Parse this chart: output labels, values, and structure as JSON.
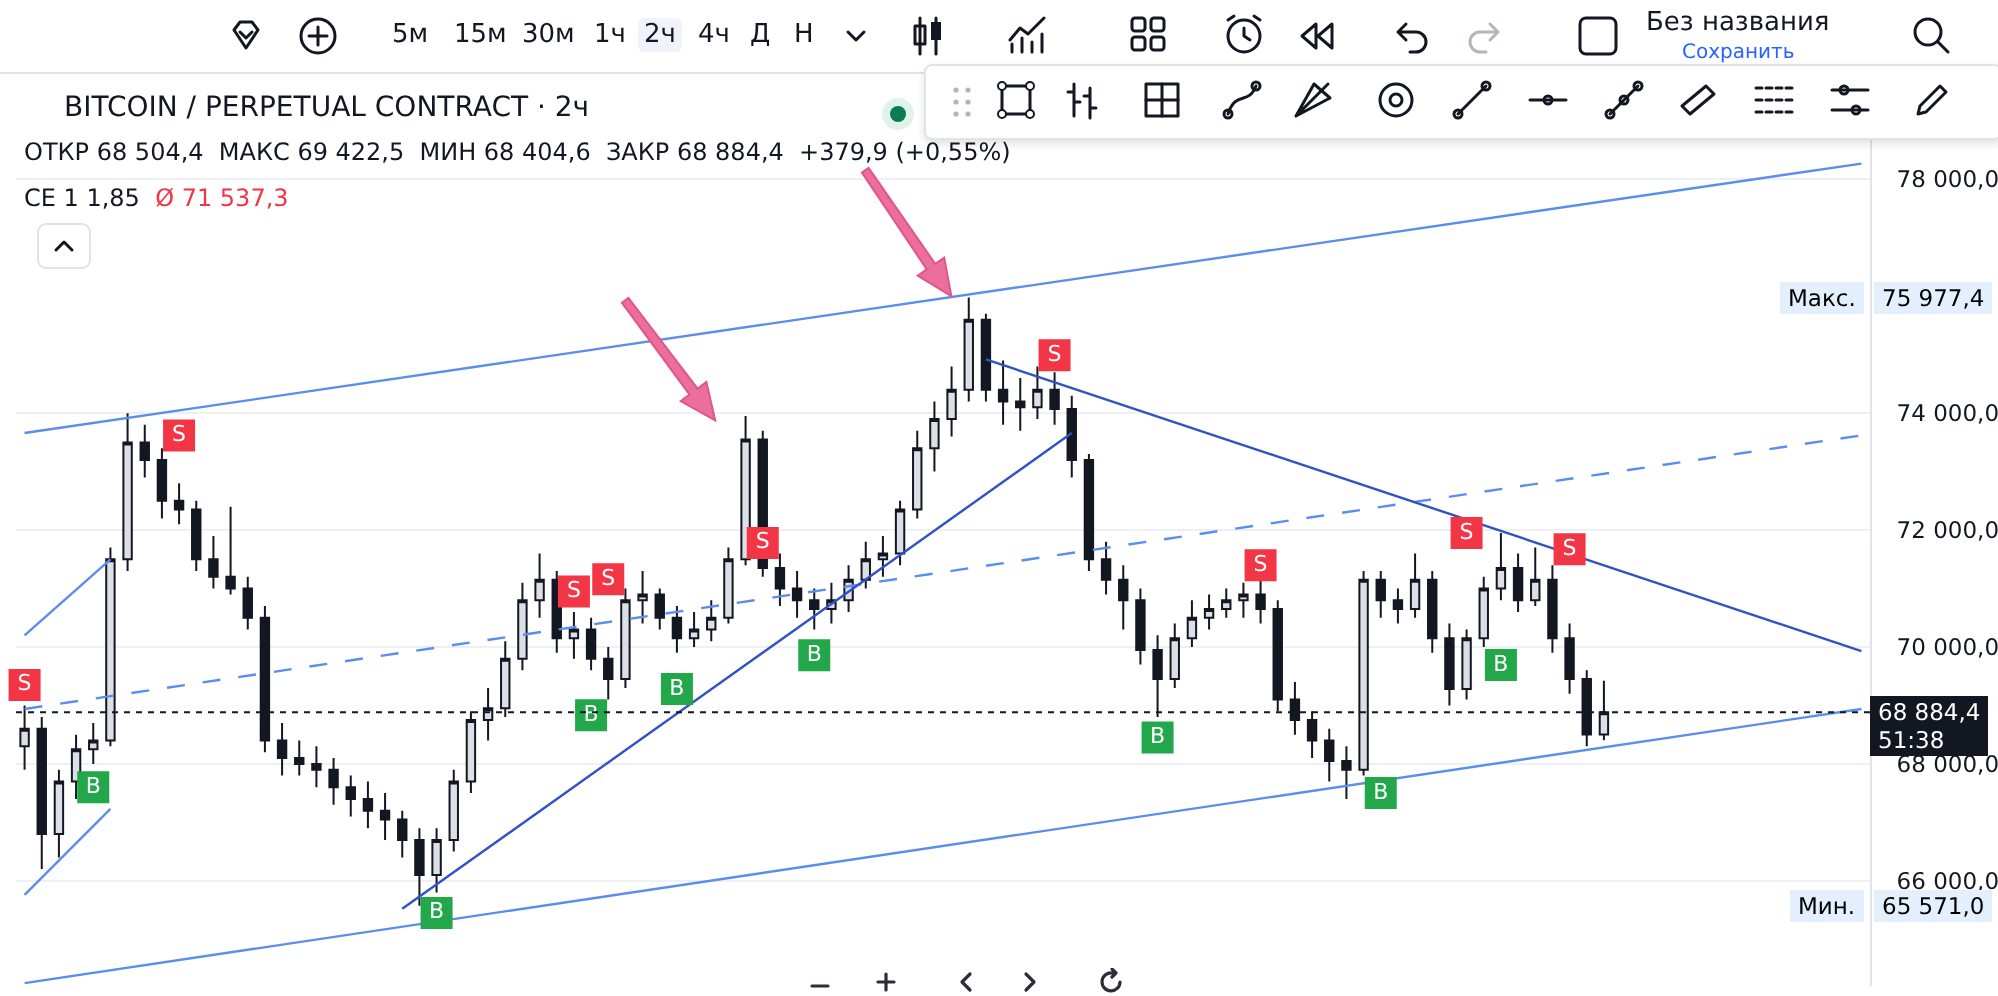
{
  "chart_data": {
    "type": "candlestick",
    "title": "BITCOIN / PERPETUAL CONTRACT · 2ч",
    "annotations": [
      "ОТКР 68 504,4  МАКС 69 422,5  МИН 68 404,6  ЗАКР 68 884,4  +379,9 (+0,55%)",
      "СЕ 1 1,85",
      "Ø 71 537,3",
      "5м",
      "15м",
      "30м",
      "1ч",
      "2ч",
      "4ч",
      "Д",
      "Н",
      "Без названия",
      "Сохранить",
      "Макс. 75 977,4",
      "Мин. 65 571,0"
    ],
    "categories": [
      null,
      null,
      null,
      null,
      null,
      null,
      null,
      null,
      null,
      null,
      null,
      null,
      null,
      null,
      null,
      null,
      null,
      null,
      null,
      null,
      null,
      null,
      null,
      null,
      null,
      null,
      null,
      null,
      null,
      null,
      null,
      null,
      null,
      null,
      null,
      null,
      null,
      null,
      null,
      null,
      null,
      null,
      null,
      null,
      null,
      null,
      null,
      null,
      null,
      null,
      null,
      null,
      null,
      null,
      null,
      null,
      null,
      null,
      null,
      null,
      null,
      null,
      null,
      null,
      null,
      null,
      null,
      null,
      null,
      null,
      null,
      null,
      null,
      null,
      null,
      null,
      null,
      null,
      null,
      null,
      null,
      null,
      null,
      null,
      null,
      null,
      null,
      null,
      null,
      null,
      null,
      null,
      null,
      null,
      null,
      null,
      null,
      null,
      null,
      null,
      null,
      null,
      null,
      null,
      null,
      null,
      null,
      null
    ],
    "ohlc": [
      [
        68300,
        69000,
        67900,
        68600
      ],
      [
        68600,
        68800,
        66200,
        66800
      ],
      [
        66800,
        67900,
        66400,
        67700
      ],
      [
        67700,
        68500,
        67400,
        68250
      ],
      [
        68250,
        68700,
        68000,
        68400
      ],
      [
        68400,
        71700,
        68300,
        71500
      ],
      [
        71500,
        74000,
        71300,
        73500
      ],
      [
        73500,
        73800,
        72900,
        73200
      ],
      [
        73200,
        73400,
        72200,
        72500
      ],
      [
        72500,
        72800,
        72100,
        72350
      ],
      [
        72350,
        72500,
        71300,
        71500
      ],
      [
        71500,
        71900,
        71000,
        71200
      ],
      [
        71200,
        72400,
        70900,
        71000
      ],
      [
        71000,
        71200,
        70300,
        70500
      ],
      [
        70500,
        70700,
        68200,
        68400
      ],
      [
        68400,
        68700,
        67800,
        68100
      ],
      [
        68100,
        68400,
        67800,
        68000
      ],
      [
        68000,
        68300,
        67600,
        67900
      ],
      [
        67900,
        68100,
        67300,
        67600
      ],
      [
        67600,
        67800,
        67100,
        67400
      ],
      [
        67400,
        67700,
        66900,
        67200
      ],
      [
        67200,
        67500,
        66700,
        67050
      ],
      [
        67050,
        67200,
        66400,
        66700
      ],
      [
        66700,
        66900,
        65571,
        66100
      ],
      [
        66100,
        66900,
        65800,
        66700
      ],
      [
        66700,
        67900,
        66500,
        67700
      ],
      [
        67700,
        68900,
        67500,
        68750
      ],
      [
        68750,
        69300,
        68400,
        68950
      ],
      [
        68950,
        70100,
        68800,
        69800
      ],
      [
        69800,
        71100,
        69600,
        70800
      ],
      [
        70800,
        71600,
        70500,
        71150
      ],
      [
        71150,
        71300,
        69900,
        70150
      ],
      [
        70150,
        70600,
        69800,
        70300
      ],
      [
        70300,
        70500,
        69600,
        69800
      ],
      [
        69800,
        70000,
        69100,
        69450
      ],
      [
        69450,
        71000,
        69300,
        70800
      ],
      [
        70800,
        71300,
        70400,
        70900
      ],
      [
        70900,
        71000,
        70300,
        70500
      ],
      [
        70500,
        70700,
        69900,
        70150
      ],
      [
        70150,
        70600,
        70000,
        70300
      ],
      [
        70300,
        70800,
        70100,
        70500
      ],
      [
        70500,
        71700,
        70400,
        71500
      ],
      [
        71500,
        73950,
        71400,
        73550
      ],
      [
        73550,
        73700,
        71200,
        71350
      ],
      [
        71350,
        71600,
        70700,
        71000
      ],
      [
        71000,
        71300,
        70500,
        70800
      ],
      [
        70800,
        71000,
        70300,
        70650
      ],
      [
        70650,
        71100,
        70400,
        70800
      ],
      [
        70800,
        71400,
        70600,
        71150
      ],
      [
        71150,
        71800,
        71000,
        71500
      ],
      [
        71500,
        71900,
        71200,
        71600
      ],
      [
        71600,
        72500,
        71400,
        72350
      ],
      [
        72350,
        73700,
        72200,
        73400
      ],
      [
        73400,
        74200,
        73000,
        73900
      ],
      [
        73900,
        74800,
        73600,
        74400
      ],
      [
        74400,
        75977.4,
        74200,
        75600
      ],
      [
        75600,
        75700,
        74200,
        74400
      ],
      [
        74400,
        74900,
        73800,
        74200
      ],
      [
        74200,
        74600,
        73700,
        74100
      ],
      [
        74100,
        74800,
        73900,
        74400
      ],
      [
        74400,
        74700,
        73800,
        74070
      ],
      [
        74070,
        74300,
        72900,
        73200
      ],
      [
        73200,
        73300,
        71300,
        71500
      ],
      [
        71500,
        71800,
        70900,
        71150
      ],
      [
        71150,
        71400,
        70300,
        70800
      ],
      [
        70800,
        71000,
        69700,
        69950
      ],
      [
        69950,
        70200,
        68800,
        69450
      ],
      [
        69450,
        70400,
        69300,
        70150
      ],
      [
        70150,
        70800,
        70000,
        70500
      ],
      [
        70500,
        70900,
        70300,
        70650
      ],
      [
        70650,
        71000,
        70500,
        70800
      ],
      [
        70800,
        71100,
        70500,
        70900
      ],
      [
        70900,
        71200,
        70400,
        70650
      ],
      [
        70650,
        70800,
        68900,
        69100
      ],
      [
        69100,
        69400,
        68500,
        68750
      ],
      [
        68750,
        68900,
        68100,
        68400
      ],
      [
        68400,
        68600,
        67700,
        68050
      ],
      [
        68050,
        68300,
        67400,
        67900
      ],
      [
        67900,
        71300,
        67800,
        71150
      ],
      [
        71150,
        71300,
        70500,
        70800
      ],
      [
        70800,
        71000,
        70400,
        70650
      ],
      [
        70650,
        71600,
        70500,
        71150
      ],
      [
        71150,
        71300,
        69900,
        70150
      ],
      [
        70150,
        70400,
        69000,
        69280
      ],
      [
        69280,
        70300,
        69100,
        70150
      ],
      [
        70150,
        71200,
        70000,
        71000
      ],
      [
        71000,
        71950,
        70800,
        71350
      ],
      [
        71350,
        71600,
        70600,
        70800
      ],
      [
        70800,
        71700,
        70700,
        71150
      ],
      [
        71150,
        71400,
        69900,
        70150
      ],
      [
        70150,
        70400,
        69200,
        69450
      ],
      [
        69450,
        69600,
        68300,
        68504.4
      ],
      [
        68504.4,
        69422.5,
        68404.6,
        68884.4
      ],
      null,
      null,
      null,
      null,
      null,
      null,
      null,
      null,
      null,
      null,
      null,
      null,
      null,
      null,
      null
    ],
    "series": [
      {
        "type": "line",
        "color": "#5b8def",
        "values": [
          73660,
          null,
          null,
          null,
          null,
          null,
          null,
          null,
          null,
          null,
          null,
          null,
          null,
          null,
          null,
          null,
          null,
          null,
          null,
          null,
          null,
          null,
          null,
          null,
          null,
          null,
          null,
          null,
          null,
          null,
          null,
          null,
          null,
          null,
          null,
          null,
          null,
          null,
          null,
          null,
          null,
          null,
          null,
          null,
          null,
          null,
          null,
          null,
          null,
          null,
          null,
          null,
          null,
          null,
          null,
          null,
          null,
          null,
          null,
          null,
          null,
          null,
          null,
          null,
          null,
          null,
          null,
          null,
          null,
          null,
          null,
          null,
          null,
          null,
          null,
          null,
          null,
          null,
          null,
          null,
          null,
          null,
          null,
          null,
          null,
          null,
          null,
          null,
          null,
          null,
          null,
          null,
          null,
          null,
          null,
          null,
          null,
          null,
          null,
          null,
          null,
          null,
          null,
          null,
          null,
          null,
          null,
          78270
        ]
      },
      {
        "type": "line",
        "color": "#5b8def",
        "values": [
          64250,
          null,
          null,
          null,
          null,
          null,
          null,
          null,
          null,
          null,
          null,
          null,
          null,
          null,
          null,
          null,
          null,
          null,
          null,
          null,
          null,
          null,
          null,
          null,
          null,
          null,
          null,
          null,
          null,
          null,
          null,
          null,
          null,
          null,
          null,
          null,
          null,
          null,
          null,
          null,
          null,
          null,
          null,
          null,
          null,
          null,
          null,
          null,
          null,
          null,
          null,
          null,
          null,
          null,
          null,
          null,
          null,
          null,
          null,
          null,
          null,
          null,
          null,
          null,
          null,
          null,
          null,
          null,
          null,
          null,
          null,
          null,
          null,
          null,
          null,
          null,
          null,
          null,
          null,
          null,
          null,
          null,
          null,
          null,
          null,
          null,
          null,
          null,
          null,
          null,
          null,
          null,
          null,
          null,
          null,
          null,
          null,
          null,
          null,
          null,
          null,
          null,
          null,
          null,
          null,
          null,
          null,
          68940
        ]
      },
      {
        "type": "line",
        "color": "#5b8def",
        "line_style": "dashed",
        "values": [
          68940,
          null,
          null,
          null,
          null,
          null,
          null,
          null,
          null,
          null,
          null,
          null,
          null,
          null,
          null,
          null,
          null,
          null,
          null,
          null,
          null,
          null,
          null,
          null,
          null,
          null,
          null,
          null,
          null,
          null,
          null,
          null,
          null,
          null,
          null,
          null,
          null,
          null,
          null,
          null,
          null,
          null,
          null,
          null,
          null,
          null,
          null,
          null,
          null,
          null,
          null,
          null,
          null,
          null,
          null,
          null,
          null,
          null,
          null,
          null,
          null,
          null,
          null,
          null,
          null,
          null,
          null,
          null,
          null,
          null,
          null,
          null,
          null,
          null,
          null,
          null,
          null,
          null,
          null,
          null,
          null,
          null,
          null,
          null,
          null,
          null,
          null,
          null,
          null,
          null,
          null,
          null,
          null,
          null,
          null,
          null,
          null,
          null,
          null,
          null,
          null,
          null,
          null,
          null,
          null,
          null,
          null,
          73620
        ]
      },
      {
        "type": "line",
        "color": "#5b8def",
        "values": [
          70200,
          null,
          null,
          null,
          null,
          71500,
          null,
          null,
          null,
          null,
          null,
          null,
          null,
          null,
          null,
          null,
          null,
          null,
          null,
          null,
          null,
          null,
          null,
          null,
          null,
          null,
          null,
          null,
          null,
          null,
          null,
          null,
          null,
          null,
          null,
          null,
          null,
          null,
          null,
          null,
          null,
          null,
          null,
          null,
          null,
          null,
          null,
          null,
          null,
          null,
          null,
          null,
          null,
          null,
          null,
          null,
          null,
          null,
          null,
          null,
          null,
          null,
          null,
          null,
          null,
          null,
          null,
          null,
          null,
          null,
          null,
          null,
          null,
          null,
          null,
          null,
          null,
          null,
          null,
          null,
          null,
          null,
          null,
          null,
          null,
          null,
          null,
          null,
          null,
          null,
          null,
          null,
          null,
          null,
          null,
          null,
          null,
          null,
          null,
          null,
          null,
          null,
          null,
          null,
          null,
          null,
          null,
          null
        ]
      },
      {
        "type": "line",
        "color": "#5b8def",
        "values": [
          65760,
          null,
          null,
          null,
          null,
          67230,
          null,
          null,
          null,
          null,
          null,
          null,
          null,
          null,
          null,
          null,
          null,
          null,
          null,
          null,
          null,
          null,
          null,
          null,
          null,
          null,
          null,
          null,
          null,
          null,
          null,
          null,
          null,
          null,
          null,
          null,
          null,
          null,
          null,
          null,
          null,
          null,
          null,
          null,
          null,
          null,
          null,
          null,
          null,
          null,
          null,
          null,
          null,
          null,
          null,
          null,
          null,
          null,
          null,
          null,
          null,
          null,
          null,
          null,
          null,
          null,
          null,
          null,
          null,
          null,
          null,
          null,
          null,
          null,
          null,
          null,
          null,
          null,
          null,
          null,
          null,
          null,
          null,
          null,
          null,
          null,
          null,
          null,
          null,
          null,
          null,
          null,
          null,
          null,
          null,
          null,
          null,
          null,
          null,
          null,
          null,
          null,
          null,
          null,
          null,
          null,
          null,
          null
        ]
      },
      {
        "type": "line",
        "color": "#2f52c4",
        "values": [
          null,
          null,
          null,
          null,
          null,
          null,
          null,
          null,
          null,
          null,
          null,
          null,
          null,
          null,
          null,
          null,
          null,
          null,
          null,
          null,
          null,
          null,
          65520,
          null,
          null,
          null,
          null,
          null,
          null,
          null,
          null,
          null,
          null,
          null,
          null,
          null,
          null,
          null,
          null,
          null,
          null,
          null,
          null,
          null,
          null,
          null,
          null,
          null,
          null,
          null,
          null,
          null,
          null,
          null,
          null,
          null,
          null,
          null,
          null,
          null,
          null,
          73660,
          null,
          null,
          null,
          null,
          null,
          null,
          null,
          null,
          null,
          null,
          null,
          null,
          null,
          null,
          null,
          null,
          null,
          null,
          null,
          null,
          null,
          null,
          null,
          null,
          null,
          null,
          null,
          null,
          null,
          null,
          null,
          null,
          null,
          null,
          null,
          null,
          null,
          null,
          null,
          null,
          null,
          null,
          null,
          null,
          null,
          null
        ]
      },
      {
        "type": "line",
        "color": "#2f52c4",
        "values": [
          null,
          null,
          null,
          null,
          null,
          null,
          null,
          null,
          null,
          null,
          null,
          null,
          null,
          null,
          null,
          null,
          null,
          null,
          null,
          null,
          null,
          null,
          null,
          null,
          null,
          null,
          null,
          null,
          null,
          null,
          null,
          null,
          null,
          null,
          null,
          null,
          null,
          null,
          null,
          null,
          null,
          null,
          null,
          null,
          null,
          null,
          null,
          null,
          null,
          null,
          null,
          null,
          null,
          null,
          null,
          null,
          74920,
          null,
          null,
          null,
          null,
          null,
          null,
          null,
          null,
          null,
          null,
          null,
          null,
          null,
          null,
          null,
          null,
          null,
          null,
          null,
          null,
          null,
          null,
          null,
          null,
          null,
          null,
          null,
          null,
          null,
          null,
          null,
          null,
          null,
          null,
          null,
          null,
          null,
          null,
          null,
          null,
          null,
          null,
          null,
          null,
          null,
          null,
          null,
          null,
          null,
          null,
          69930
        ]
      },
      {
        "type": "scatter",
        "color": "#f23645",
        "marker": "square",
        "values": [
          69350,
          null,
          null,
          null,
          null,
          null,
          null,
          null,
          null,
          73620,
          null,
          null,
          null,
          null,
          null,
          null,
          null,
          null,
          null,
          null,
          null,
          null,
          null,
          null,
          null,
          null,
          null,
          null,
          null,
          null,
          null,
          null,
          70950,
          null,
          71160,
          null,
          null,
          null,
          null,
          null,
          null,
          null,
          null,
          71780,
          null,
          null,
          null,
          null,
          null,
          null,
          null,
          null,
          null,
          null,
          null,
          null,
          null,
          null,
          null,
          null,
          74990,
          null,
          null,
          null,
          null,
          null,
          null,
          null,
          null,
          null,
          null,
          null,
          71400,
          null,
          null,
          null,
          null,
          null,
          null,
          null,
          null,
          null,
          null,
          null,
          71950,
          null,
          null,
          null,
          null,
          null,
          71670,
          null,
          null,
          null,
          null,
          null,
          null,
          null,
          null,
          null,
          null,
          null,
          null,
          null,
          null,
          null,
          null,
          null
        ],
        "value_labels": [
          "S",
          null,
          null,
          null,
          null,
          null,
          null,
          null,
          null,
          "S",
          null,
          null,
          null,
          null,
          null,
          null,
          null,
          null,
          null,
          null,
          null,
          null,
          null,
          null,
          null,
          null,
          null,
          null,
          null,
          null,
          null,
          null,
          "S",
          null,
          "S",
          null,
          null,
          null,
          null,
          null,
          null,
          null,
          null,
          "S",
          null,
          null,
          null,
          null,
          null,
          null,
          null,
          null,
          null,
          null,
          null,
          null,
          null,
          null,
          null,
          null,
          "S",
          null,
          null,
          null,
          null,
          null,
          null,
          null,
          null,
          null,
          null,
          null,
          "S",
          null,
          null,
          null,
          null,
          null,
          null,
          null,
          null,
          null,
          null,
          null,
          "S",
          null,
          null,
          null,
          null,
          null,
          "S",
          null,
          null,
          null,
          null,
          null,
          null,
          null,
          null,
          null,
          null,
          null,
          null,
          null,
          null,
          null,
          null,
          null
        ]
      },
      {
        "type": "scatter",
        "color": "#22a84a",
        "marker": "square",
        "values": [
          null,
          null,
          null,
          null,
          67600,
          null,
          null,
          null,
          null,
          null,
          null,
          null,
          null,
          null,
          null,
          null,
          null,
          null,
          null,
          null,
          null,
          null,
          null,
          null,
          65450,
          null,
          null,
          null,
          null,
          null,
          null,
          null,
          null,
          68830,
          null,
          null,
          null,
          null,
          69280,
          null,
          null,
          null,
          null,
          null,
          null,
          null,
          69860,
          null,
          null,
          null,
          null,
          null,
          null,
          null,
          null,
          null,
          null,
          null,
          null,
          null,
          null,
          null,
          null,
          null,
          null,
          null,
          68450,
          null,
          null,
          null,
          null,
          null,
          null,
          null,
          null,
          null,
          null,
          null,
          null,
          67500,
          null,
          null,
          null,
          null,
          null,
          null,
          69690,
          null,
          null,
          null,
          null,
          null,
          null,
          null,
          null,
          null,
          null,
          null,
          null,
          null,
          null,
          null,
          null,
          null,
          null,
          null,
          null,
          null
        ],
        "value_labels": [
          null,
          null,
          null,
          null,
          "B",
          null,
          null,
          null,
          null,
          null,
          null,
          null,
          null,
          null,
          null,
          null,
          null,
          null,
          null,
          null,
          null,
          null,
          null,
          null,
          "B",
          null,
          null,
          null,
          null,
          null,
          null,
          null,
          null,
          "B",
          null,
          null,
          null,
          null,
          "B",
          null,
          null,
          null,
          null,
          null,
          null,
          null,
          "B",
          null,
          null,
          null,
          null,
          null,
          null,
          null,
          null,
          null,
          null,
          null,
          null,
          null,
          null,
          null,
          null,
          null,
          null,
          null,
          "B",
          null,
          null,
          null,
          null,
          null,
          null,
          null,
          null,
          null,
          null,
          null,
          null,
          "B",
          null,
          null,
          null,
          null,
          null,
          null,
          "B",
          null,
          null,
          null,
          null,
          null,
          null,
          null,
          null,
          null,
          null,
          null,
          null,
          null,
          null,
          null,
          null,
          null,
          null,
          null,
          null,
          null
        ]
      }
    ],
    "ylim": [
      64200,
      79700
    ],
    "yticks": [
      {
        "value": 66000,
        "label": "66 000,0"
      },
      {
        "value": 68000,
        "label": "68 000,0"
      },
      {
        "value": 70000,
        "label": "70 000,0"
      },
      {
        "value": 72000,
        "label": "72 000,0"
      },
      {
        "value": 74000,
        "label": "74 000,0"
      },
      {
        "value": 78000,
        "label": "78 000,0"
      }
    ],
    "ref_lines": [
      {
        "axis": "y",
        "value": 68884.4,
        "label": "68 884,4\n51:38",
        "line_style": "dotted",
        "color": "#131722"
      }
    ],
    "grid": "y",
    "tick_labels": "y"
  }
}
